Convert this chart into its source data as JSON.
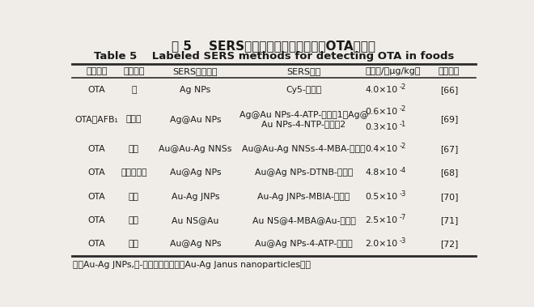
{
  "title_cn": "表 5    SERS间接检测技术检测食品中OTA的方法",
  "title_en": "Table 5    Labeled SERS methods for detecting OTA in foods",
  "headers": [
    "真菌毒素",
    "样本基质",
    "SERS增强基底",
    "SERS探针",
    "检测限/（μg/kg）",
    "参考文献"
  ],
  "rows": [
    {
      "col0": "OTA",
      "col1": "水",
      "col2": "Ag NPs",
      "col3": "Cy5-适配体",
      "col4_base": "4.0×10",
      "col4_exp": "-2",
      "col5": "[66]",
      "multiline": false
    },
    {
      "col0": "OTA、AFB₁",
      "col1": "玉米粉",
      "col2": "Ag@Au NPs",
      "col3": "Ag@Au NPs-4-ATP-适配体1、Ag@\nAu NPs-4-NTP-适配体2",
      "col4_line1_base": "0.6×10",
      "col4_line1_exp": "-2",
      "col4_line2_base": "0.3×10",
      "col4_line2_exp": "-1",
      "col5": "[69]",
      "multiline": true
    },
    {
      "col0": "OTA",
      "col1": "红酒",
      "col2": "Au@Au-Ag NNSs",
      "col3": "Au@Au-Ag NNSs-4-MBA-适配体",
      "col4_base": "0.4×10",
      "col4_exp": "-2",
      "col5": "[67]",
      "multiline": false
    },
    {
      "col0": "OTA",
      "col1": "红酒、咖啡",
      "col2": "Au@Ag NPs",
      "col3": "Au@Ag NPs-DTNB-适配体",
      "col4_base": "4.8×10",
      "col4_exp": "-4",
      "col5": "[68]",
      "multiline": false
    },
    {
      "col0": "OTA",
      "col1": "红酒",
      "col2": "Au-Ag JNPs",
      "col3": "Au-Ag JNPs-MBIA-适配体",
      "col4_base": "0.5×10",
      "col4_exp": "-3",
      "col5": "[70]",
      "multiline": false
    },
    {
      "col0": "OTA",
      "col1": "红酒",
      "col2": "Au NS@Au",
      "col3": "Au NS@4-MBA@Au-适配体",
      "col4_base": "2.5×10",
      "col4_exp": "-7",
      "col5": "[71]",
      "multiline": false
    },
    {
      "col0": "OTA",
      "col1": "红酒",
      "col2": "Au@Ag NPs",
      "col3": "Au@Ag NPs-4-ATP-适配体",
      "col4_base": "2.0×10",
      "col4_exp": "-3",
      "col5": "[72]",
      "multiline": false
    }
  ],
  "footnote": "注：Au-Ag JNPs,金-银双面纳米颗粒（Au-Ag Janus nanoparticles）。",
  "bg_color": "#f0ede8",
  "text_color": "#1a1a1a",
  "line_color": "#2a2a2a"
}
